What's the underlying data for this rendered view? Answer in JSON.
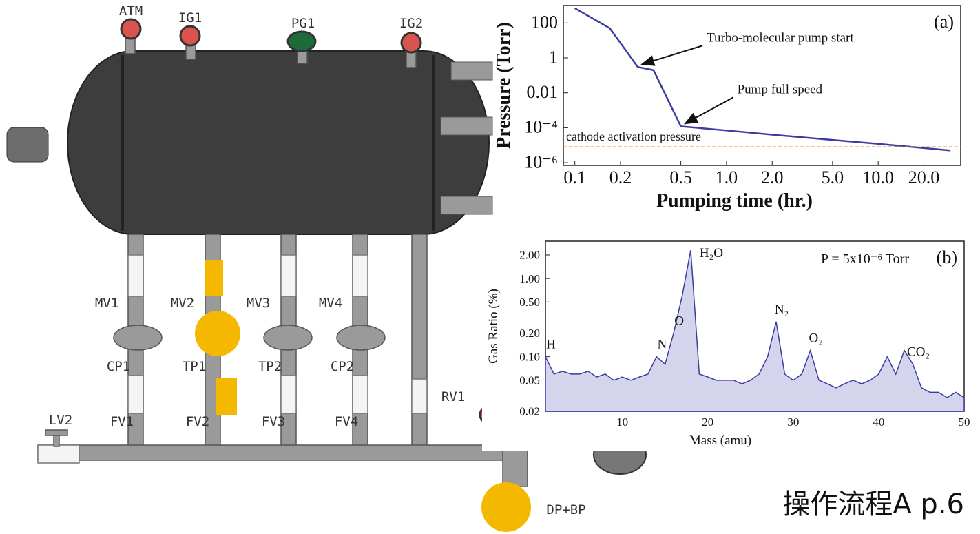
{
  "diagram": {
    "labels": [
      "ATM",
      "IG1",
      "PG1",
      "IG2",
      "MV1",
      "MV2",
      "MV3",
      "MV4",
      "CP1",
      "TP1",
      "TP2",
      "CP2",
      "FV1",
      "FV2",
      "FV3",
      "FV4",
      "RV1",
      "LV2",
      "DP+BP"
    ]
  },
  "chart_data": [
    {
      "type": "line",
      "panel": "(a)",
      "x_label": "Pumping time (hr.)",
      "y_label": "Pressure (Torr)",
      "xscale": "log",
      "yscale": "log",
      "x": [
        0.1,
        0.17,
        0.26,
        0.33,
        0.5,
        1,
        2,
        5,
        10,
        30
      ],
      "series": [
        {
          "color": "#3c3ca0",
          "values": [
            700,
            50,
            0.3,
            0.2,
            0.00012,
            7e-05,
            4e-05,
            2e-05,
            1.2e-05,
            5e-06
          ]
        }
      ],
      "xlim": [
        0.084,
        35
      ],
      "ylim": [
        7e-07,
        1000
      ],
      "xticks": [
        0.1,
        0.2,
        0.5,
        {
          "value": 1,
          "label": "1.0"
        },
        {
          "value": 2,
          "label": "2.0"
        },
        {
          "value": 5,
          "label": "5.0"
        },
        {
          "value": 10,
          "label": "10.0"
        },
        {
          "value": 20,
          "label": "20.0"
        }
      ],
      "yticks": [
        100,
        1,
        0.01,
        {
          "value": 0.0001,
          "label": "10⁻⁴"
        },
        {
          "value": 1e-06,
          "label": "10⁻⁶"
        }
      ],
      "reference_line": {
        "label": "cathode activation pressure",
        "value": 8e-06,
        "color": "#e8892a"
      },
      "annotations": [
        {
          "text": "Turbo-molecular pump start",
          "x": 0.26,
          "y": 0.3
        },
        {
          "text": "Pump full speed",
          "x": 0.5,
          "y": 0.00012
        }
      ]
    },
    {
      "type": "area",
      "panel": "(b)",
      "subtitle": "P = 5x10⁻⁶ Torr",
      "x_label": "Mass (amu)",
      "y_label": "Gas Ratio (%)",
      "yscale": "log",
      "color": "#3c3ca0",
      "x": [
        1,
        2,
        3,
        4,
        5,
        6,
        7,
        8,
        9,
        10,
        11,
        12,
        13,
        14,
        15,
        16,
        17,
        18,
        19,
        20,
        21,
        22,
        23,
        24,
        25,
        26,
        27,
        28,
        29,
        30,
        31,
        32,
        33,
        34,
        35,
        36,
        37,
        38,
        39,
        40,
        41,
        42,
        43,
        44,
        45,
        46,
        47,
        48,
        49,
        50
      ],
      "values": [
        0.1,
        0.06,
        0.065,
        0.06,
        0.06,
        0.065,
        0.055,
        0.06,
        0.05,
        0.055,
        0.05,
        0.055,
        0.06,
        0.1,
        0.08,
        0.2,
        0.6,
        2.3,
        0.06,
        0.055,
        0.05,
        0.05,
        0.05,
        0.045,
        0.05,
        0.06,
        0.1,
        0.28,
        0.06,
        0.05,
        0.06,
        0.12,
        0.05,
        0.045,
        0.04,
        0.045,
        0.05,
        0.045,
        0.05,
        0.06,
        0.1,
        0.06,
        0.12,
        0.08,
        0.04,
        0.035,
        0.035,
        0.03,
        0.035,
        0.03
      ],
      "xlim": [
        1,
        50
      ],
      "ylim": [
        0.02,
        3
      ],
      "xticks": [
        10,
        20,
        30,
        40,
        50
      ],
      "yticks": [
        0.02,
        0.05,
        {
          "value": 0.1,
          "label": "0.10"
        },
        {
          "value": 0.2,
          "label": "0.20"
        },
        {
          "value": 0.5,
          "label": "0.50"
        },
        {
          "value": 1,
          "label": "1.00"
        },
        {
          "value": 2,
          "label": "2.00"
        }
      ],
      "peaks": [
        {
          "label": "H",
          "x": 1
        },
        {
          "label": "N",
          "x": 14
        },
        {
          "label": "O",
          "x": 16
        },
        {
          "label": "H₂O",
          "x": 18
        },
        {
          "label": "N₂",
          "x": 28
        },
        {
          "label": "O₂",
          "x": 32
        },
        {
          "label": "CO₂",
          "x": 44
        }
      ]
    }
  ],
  "caption": "操作流程A p.6"
}
